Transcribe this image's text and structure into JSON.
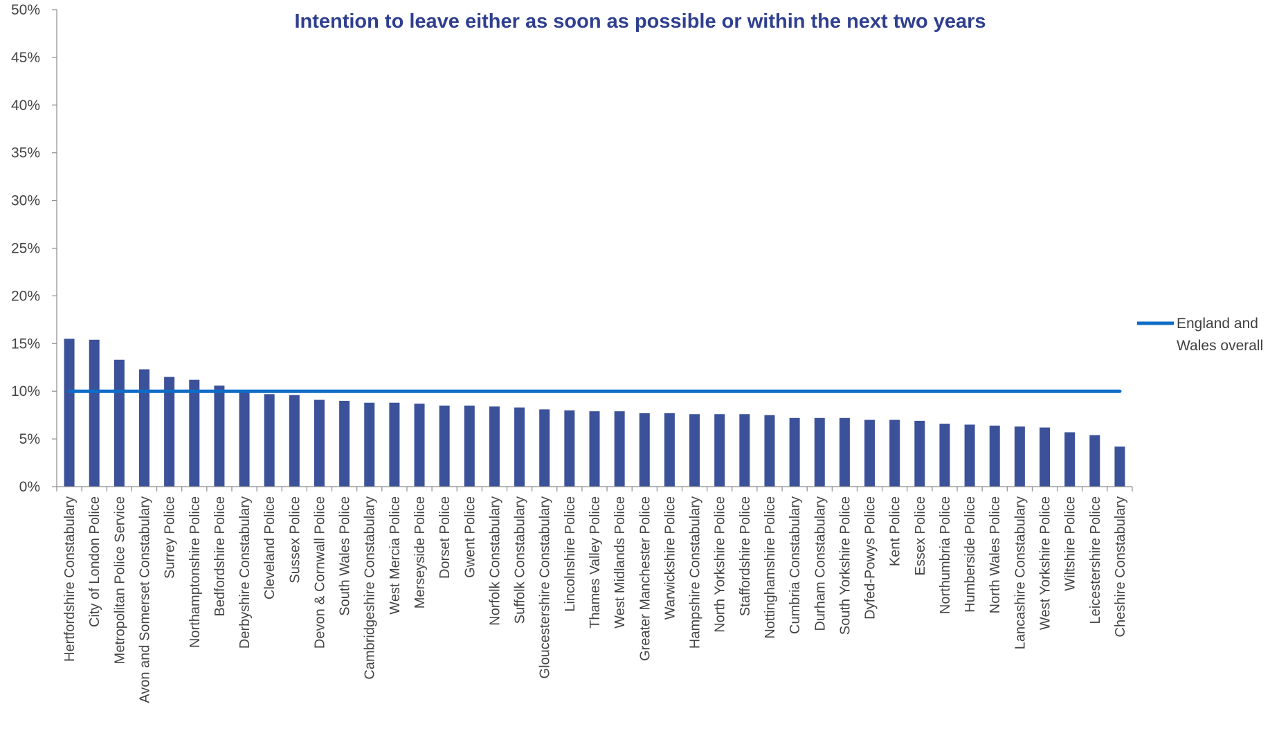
{
  "chart_data": {
    "type": "bar",
    "title": "Intention to leave either as soon as possible or within the next two years",
    "xlabel": "",
    "ylabel": "",
    "ylim": [
      0,
      50
    ],
    "yticks": [
      "0%",
      "5%",
      "10%",
      "15%",
      "20%",
      "25%",
      "30%",
      "35%",
      "40%",
      "45%",
      "50%"
    ],
    "grid": false,
    "legend_position": "right",
    "bar_color": "#3B5199",
    "categories": [
      "Hertfordshire Constabulary",
      "City of London Police",
      "Metropolitan Police Service",
      "Avon and Somerset Constabulary",
      "Surrey Police",
      "Northamptonshire Police",
      "Bedfordshire Police",
      "Derbyshire Constabulary",
      "Cleveland Police",
      "Sussex Police",
      "Devon & Cornwall Police",
      "South Wales Police",
      "Cambridgeshire Constabulary",
      "West Mercia Police",
      "Merseyside Police",
      "Dorset Police",
      "Gwent Police",
      "Norfolk Constabulary",
      "Suffolk Constabulary",
      "Gloucestershire Constabulary",
      "Lincolnshire Police",
      "Thames Valley Police",
      "West Midlands Police",
      "Greater Manchester Police",
      "Warwickshire Police",
      "Hampshire Constabulary",
      "North Yorkshire Police",
      "Staffordshire Police",
      "Nottinghamshire Police",
      "Cumbria Constabulary",
      "Durham Constabulary",
      "South Yorkshire Police",
      "Dyfed-Powys Police",
      "Kent Police",
      "Essex Police",
      "Northumbria Police",
      "Humberside Police",
      "North Wales Police",
      "Lancashire Constabulary",
      "West Yorkshire Police",
      "Wiltshire Police",
      "Leicestershire Police",
      "Cheshire Constabulary"
    ],
    "values": [
      15.5,
      15.4,
      13.3,
      12.3,
      11.5,
      11.2,
      10.6,
      10.0,
      9.7,
      9.6,
      9.1,
      9.0,
      8.8,
      8.8,
      8.7,
      8.5,
      8.5,
      8.4,
      8.3,
      8.1,
      8.0,
      7.9,
      7.9,
      7.7,
      7.7,
      7.6,
      7.6,
      7.6,
      7.5,
      7.2,
      7.2,
      7.2,
      7.0,
      7.0,
      6.9,
      6.6,
      6.5,
      6.4,
      6.3,
      6.2,
      5.7,
      5.4,
      4.2
    ],
    "reference_line": {
      "name": "England and Wales overall",
      "name_lines": [
        "England and",
        "Wales overall"
      ],
      "value": 10,
      "color": "#0F6CC7"
    }
  }
}
